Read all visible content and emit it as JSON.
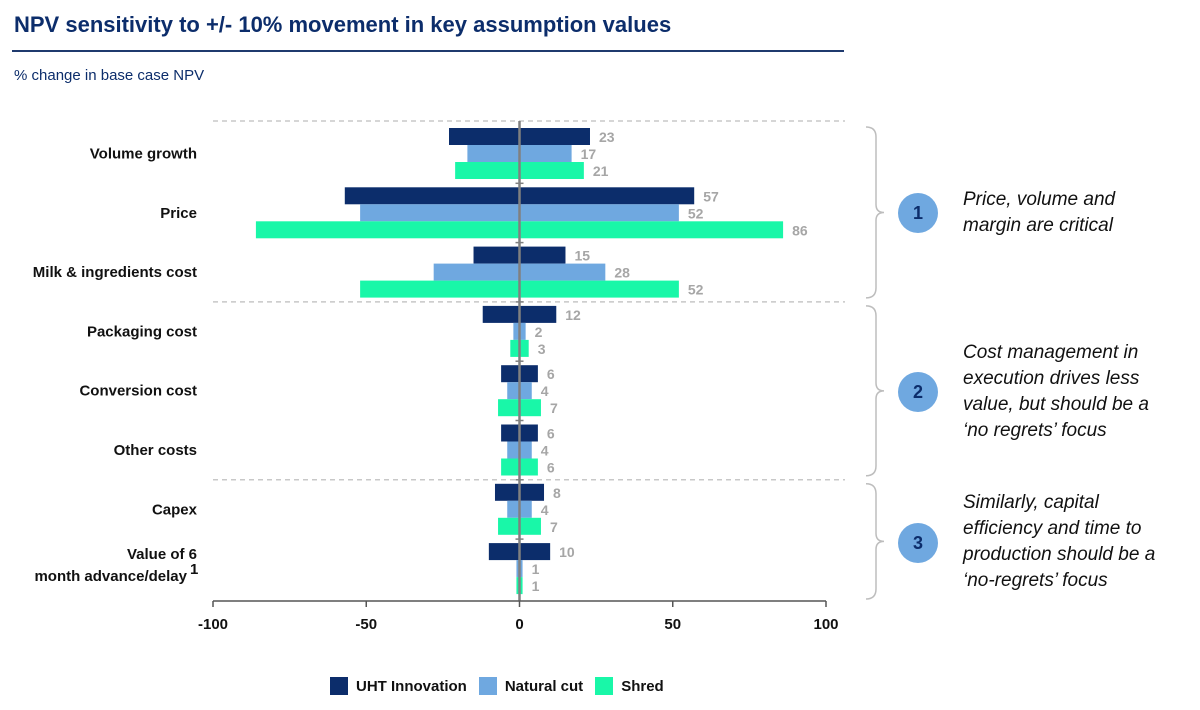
{
  "title": "NPV sensitivity to +/- 10% movement in key assumption values",
  "subtitle": "% change in base case NPV",
  "colors": {
    "uht": "#0c2d6b",
    "natural": "#6fa8e0",
    "shred": "#19f7a8",
    "label": "#a6a6a6"
  },
  "chart_data": {
    "type": "bar",
    "orientation": "horizontal",
    "xlim": [
      -100,
      100
    ],
    "xticks": [
      "-100",
      "-50",
      "0",
      "50",
      "100"
    ],
    "categories": [
      "Volume growth",
      "Price",
      "Milk & ingredients cost",
      "Packaging cost",
      "Conversion cost",
      "Other costs",
      "Capex",
      "Value of 6 month advance/delay"
    ],
    "category_footnote": "1",
    "series": [
      {
        "name": "UHT Innovation",
        "low": [
          -23,
          -57,
          -15,
          -12,
          -6,
          -6,
          -8,
          -10
        ],
        "high": [
          23,
          57,
          15,
          12,
          6,
          6,
          8,
          10
        ],
        "labels": [
          "23",
          "57",
          "15",
          "12",
          "6",
          "6",
          "8",
          "10"
        ]
      },
      {
        "name": "Natural cut",
        "low": [
          -17,
          -52,
          -28,
          -2,
          -4,
          -4,
          -4,
          -1
        ],
        "high": [
          17,
          52,
          28,
          2,
          4,
          4,
          4,
          1
        ],
        "labels": [
          "17",
          "52",
          "28",
          "2",
          "4",
          "4",
          "4",
          "1"
        ]
      },
      {
        "name": "Shred",
        "low": [
          -21,
          -86,
          -52,
          -3,
          -7,
          -6,
          -7,
          -1
        ],
        "high": [
          21,
          86,
          52,
          3,
          7,
          6,
          7,
          1
        ],
        "labels": [
          "21",
          "86",
          "52",
          "3",
          "7",
          "6",
          "7",
          "1"
        ]
      }
    ],
    "legend_position": "bottom"
  },
  "callouts": [
    {
      "number": "1",
      "text": "Price, volume and margin are critical"
    },
    {
      "number": "2",
      "text": "Cost management in execution drives less value, but should be a ‘no regrets’ focus"
    },
    {
      "number": "3",
      "text": "Similarly, capital efficiency and time to production should be a ‘no-regrets’ focus"
    }
  ]
}
